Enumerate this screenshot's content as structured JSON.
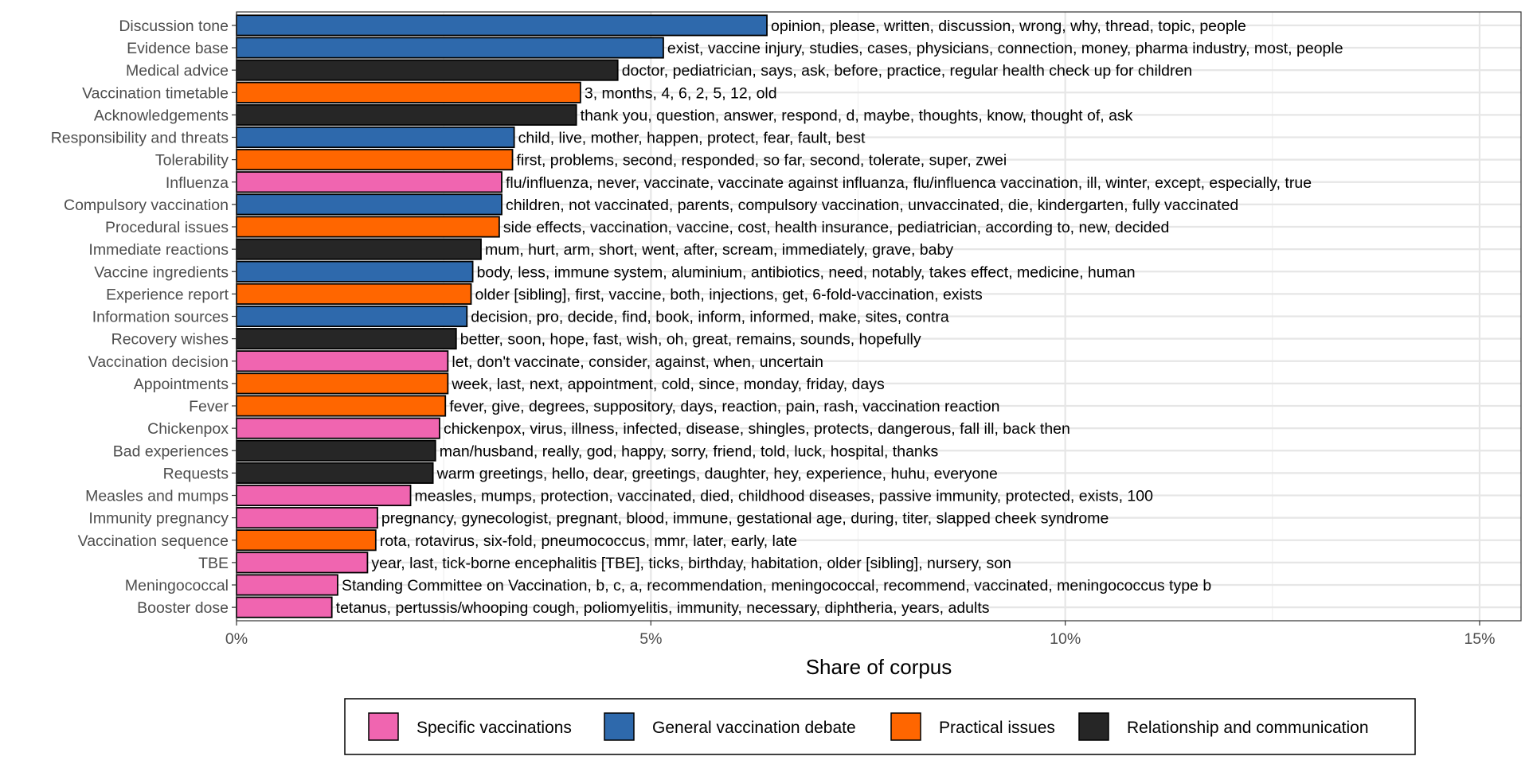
{
  "chart_data": {
    "type": "bar",
    "orientation": "horizontal",
    "xlabel": "Share of corpus",
    "ylabel": "",
    "xlim": [
      0,
      15.5
    ],
    "x_ticks": [
      0,
      5,
      10,
      15
    ],
    "x_tick_labels": [
      "0%",
      "5%",
      "10%",
      "15%"
    ],
    "grid": true,
    "legend_position": "bottom",
    "legend": [
      {
        "key": "specific",
        "label": "Specific vaccinations",
        "color": "#F065B0"
      },
      {
        "key": "general",
        "label": "General vaccination debate",
        "color": "#2E69AC"
      },
      {
        "key": "practical",
        "label": "Practical issues",
        "color": "#FF6600"
      },
      {
        "key": "relationship",
        "label": "Relationship and communication",
        "color": "#262626"
      }
    ],
    "bars": [
      {
        "category": "Discussion tone",
        "value": 6.4,
        "group": "general",
        "label": "opinion, please, written, discussion, wrong, why, thread, topic, people"
      },
      {
        "category": "Evidence base",
        "value": 5.15,
        "group": "general",
        "label": "exist, vaccine injury, studies, cases, physicians, connection, money, pharma industry, most, people"
      },
      {
        "category": "Medical advice",
        "value": 4.6,
        "group": "relationship",
        "label": "doctor, pediatrician, says, ask, before, practice, regular health check up for children"
      },
      {
        "category": "Vaccination timetable",
        "value": 4.15,
        "group": "practical",
        "label": "3, months, 4, 6, 2, 5, 12, old"
      },
      {
        "category": "Acknowledgements",
        "value": 4.1,
        "group": "relationship",
        "label": "thank you, question, answer, respond, d, maybe, thoughts, know, thought of, ask"
      },
      {
        "category": "Responsibility and threats",
        "value": 3.35,
        "group": "general",
        "label": "child, live, mother, happen, protect, fear, fault, best"
      },
      {
        "category": "Tolerability",
        "value": 3.33,
        "group": "practical",
        "label": "first, problems, second, responded, so far, second, tolerate, super, zwei"
      },
      {
        "category": "Influenza",
        "value": 3.2,
        "group": "specific",
        "label": "flu/influenza, never, vaccinate, vaccinate against influanza, flu/influenca vaccination, ill, winter, except, especially, true"
      },
      {
        "category": "Compulsory vaccination",
        "value": 3.2,
        "group": "general",
        "label": "children, not vaccinated, parents, compulsory vaccination, unvaccinated, die, kindergarten, fully vaccinated"
      },
      {
        "category": "Procedural issues",
        "value": 3.17,
        "group": "practical",
        "label": "side effects, vaccination, vaccine, cost, health insurance, pediatrician, according to, new, decided"
      },
      {
        "category": "Immediate reactions",
        "value": 2.95,
        "group": "relationship",
        "label": "mum, hurt, arm, short, went, after, scream, immediately, grave, baby"
      },
      {
        "category": "Vaccine ingredients",
        "value": 2.85,
        "group": "general",
        "label": "body, less, immune system, aluminium, antibiotics, need, notably, takes effect, medicine, human"
      },
      {
        "category": "Experience report",
        "value": 2.83,
        "group": "practical",
        "label": "older [sibling], first, vaccine, both, injections, get, 6-fold-vaccination, exists"
      },
      {
        "category": "Information sources",
        "value": 2.78,
        "group": "general",
        "label": "decision, pro, decide, find, book, inform, informed, make, sites, contra"
      },
      {
        "category": "Recovery wishes",
        "value": 2.65,
        "group": "relationship",
        "label": "better, soon, hope, fast, wish, oh, great, remains, sounds, hopefully"
      },
      {
        "category": "Vaccination decision",
        "value": 2.55,
        "group": "specific",
        "label": "let, don't vaccinate, consider, against, when, uncertain"
      },
      {
        "category": "Appointments",
        "value": 2.55,
        "group": "practical",
        "label": "week, last, next, appointment, cold, since, monday, friday, days"
      },
      {
        "category": "Fever",
        "value": 2.52,
        "group": "practical",
        "label": "fever, give, degrees, suppository, days, reaction, pain, rash, vaccination reaction"
      },
      {
        "category": "Chickenpox",
        "value": 2.45,
        "group": "specific",
        "label": "chickenpox, virus, illness, infected, disease, shingles, protects, dangerous, fall ill, back then"
      },
      {
        "category": "Bad experiences",
        "value": 2.4,
        "group": "relationship",
        "label": "man/husband, really, god, happy, sorry, friend, told, luck, hospital, thanks"
      },
      {
        "category": "Requests",
        "value": 2.37,
        "group": "relationship",
        "label": "warm greetings, hello, dear, greetings, daughter, hey, experience, huhu, everyone"
      },
      {
        "category": "Measles and mumps",
        "value": 2.1,
        "group": "specific",
        "label": "measles, mumps, protection, vaccinated, died, childhood diseases, passive immunity, protected, exists, 100"
      },
      {
        "category": "Immunity pregnancy",
        "value": 1.7,
        "group": "specific",
        "label": "pregnancy, gynecologist, pregnant, blood, immune, gestational age, during, titer, slapped cheek syndrome"
      },
      {
        "category": "Vaccination sequence",
        "value": 1.68,
        "group": "practical",
        "label": "rota, rotavirus, six-fold, pneumococcus, mmr, later, early, late"
      },
      {
        "category": "TBE",
        "value": 1.58,
        "group": "specific",
        "label": "year, last, tick-borne encephalitis [TBE], ticks, birthday, habitation, older [sibling], nursery, son"
      },
      {
        "category": "Meningococcal",
        "value": 1.22,
        "group": "specific",
        "label": "Standing Committee on Vaccination, b, c, a, recommendation, meningococcal, recommend, vaccinated, meningococcus type b"
      },
      {
        "category": "Booster dose",
        "value": 1.15,
        "group": "specific",
        "label": "tetanus, pertussis/whooping cough, poliomyelitis, immunity, necessary, diphtheria, years, adults"
      }
    ]
  }
}
